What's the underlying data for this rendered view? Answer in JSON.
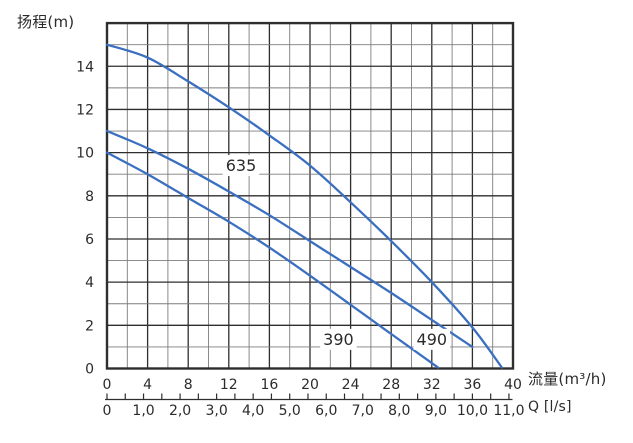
{
  "chart_data": {
    "type": "line",
    "title": "",
    "y_axis": {
      "title": "扬程(m)",
      "min": 0,
      "max": 16,
      "grid_step": 1,
      "major_step": 2,
      "tick_values": [
        0,
        2,
        4,
        6,
        8,
        10,
        12,
        14
      ]
    },
    "x_axis": {
      "title": "流量(m³/h)",
      "min": 0,
      "max": 40,
      "grid_step": 2,
      "major_step": 4,
      "tick_values": [
        0,
        4,
        8,
        12,
        16,
        20,
        24,
        28,
        32,
        36,
        40
      ]
    },
    "secondary_x_axis": {
      "title": "Q [l/s]",
      "min": 0,
      "max": 11,
      "primary_units_per_unit": 3.6,
      "minor_tick_step": 0.5,
      "tick_values": [
        0,
        1,
        2,
        3,
        4,
        5,
        6,
        7,
        8,
        9,
        10,
        11
      ],
      "tick_labels": [
        "0",
        "1,0",
        "2,0",
        "3,0",
        "4,0",
        "5,0",
        "6,0",
        "7,0",
        "8,0",
        "9,0",
        "10,0",
        "11,0"
      ]
    },
    "series": [
      {
        "name": "635",
        "label_at": {
          "x": 13.2,
          "y": 9.4
        },
        "points": [
          [
            0,
            15.0
          ],
          [
            4,
            14.4
          ],
          [
            8,
            13.3
          ],
          [
            12,
            12.1
          ],
          [
            16,
            10.8
          ],
          [
            20,
            9.4
          ],
          [
            24,
            7.7
          ],
          [
            28,
            5.9
          ],
          [
            32,
            4.0
          ],
          [
            36,
            1.9
          ],
          [
            38.9,
            0.05
          ]
        ]
      },
      {
        "name": "490",
        "label_at": {
          "x": 32.0,
          "y": 1.35
        },
        "points": [
          [
            0,
            11.0
          ],
          [
            4,
            10.2
          ],
          [
            8,
            9.25
          ],
          [
            12,
            8.2
          ],
          [
            16,
            7.1
          ],
          [
            20,
            5.9
          ],
          [
            24,
            4.7
          ],
          [
            28,
            3.5
          ],
          [
            32,
            2.25
          ],
          [
            36,
            1.0
          ]
        ]
      },
      {
        "name": "390",
        "label_at": {
          "x": 22.8,
          "y": 1.35
        },
        "points": [
          [
            0,
            10.0
          ],
          [
            4,
            9.0
          ],
          [
            8,
            7.9
          ],
          [
            12,
            6.8
          ],
          [
            16,
            5.6
          ],
          [
            20,
            4.3
          ],
          [
            24,
            2.95
          ],
          [
            28,
            1.6
          ],
          [
            32.6,
            0.05
          ]
        ]
      }
    ],
    "legend": "none",
    "grid": "on",
    "colors": {
      "curve": "#3B6FC0",
      "grid_major": "#2e2e2e",
      "grid_minor": "#7d7d7d",
      "border": "#2e2e2e",
      "text": "#2b2b2b",
      "background": "#ffffff"
    }
  }
}
